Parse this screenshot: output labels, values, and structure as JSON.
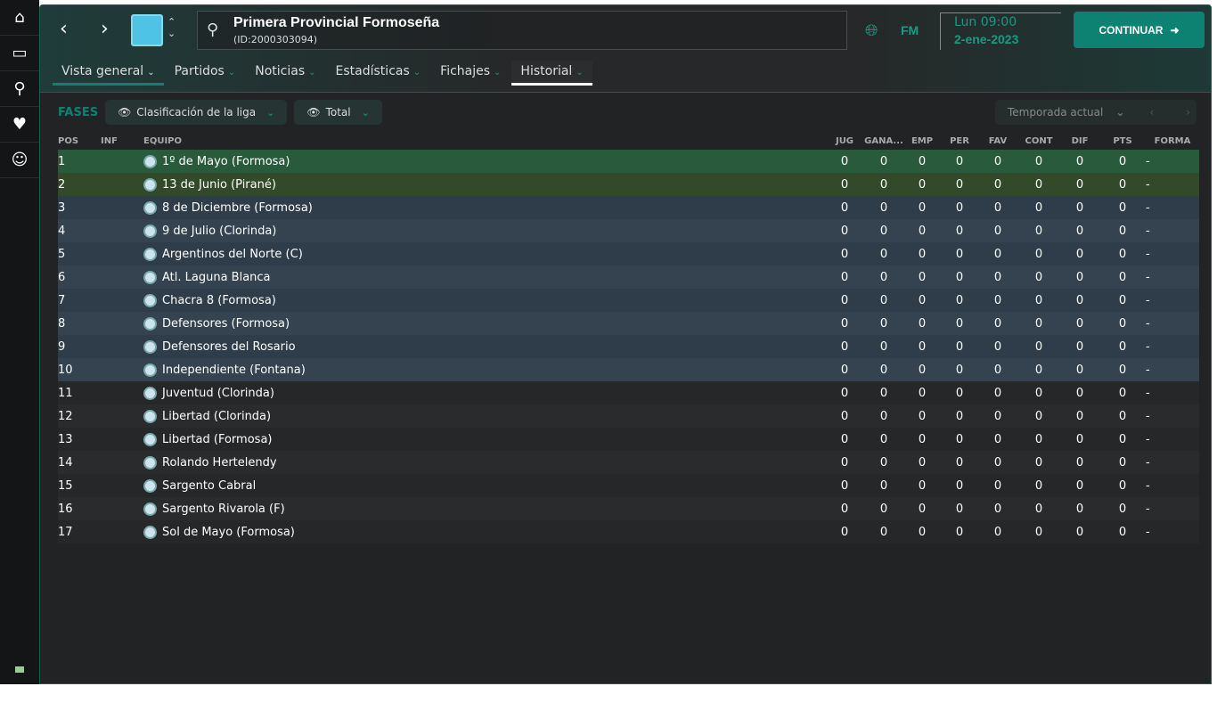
{
  "sidebar": {
    "items": [
      "home-icon",
      "inbox-icon",
      "search-icon",
      "scout-icon",
      "staff-icon"
    ]
  },
  "header": {
    "title": "Primera Provincial Formoseña",
    "id": "(ID:2000303094)",
    "fm": "FM",
    "time": "Lun 09:00",
    "date": "2-ene-2023",
    "continue": "CONTINUAR"
  },
  "tabs": [
    {
      "label": "Vista general"
    },
    {
      "label": "Partidos"
    },
    {
      "label": "Noticias"
    },
    {
      "label": "Estadísticas"
    },
    {
      "label": "Fichajes"
    },
    {
      "label": "Historial"
    }
  ],
  "filters": {
    "fases": "FASES",
    "view": "Clasificación de la liga",
    "scope": "Total",
    "season": "Temporada actual"
  },
  "columns": [
    "POS",
    "INF",
    "EQUIPO",
    "JUG",
    "GANA...",
    "EMP",
    "PER",
    "FAV",
    "CONT",
    "DIF",
    "PTS",
    "FORMA"
  ],
  "colors": {
    "accent": "#0e8272",
    "row_1st": "#2a5a3c",
    "row_2nd": "#334a2a",
    "rows_3rd_to_10th": "#2f3d4a"
  },
  "rows": [
    {
      "pos": "1",
      "team": "1º de Mayo (Formosa)",
      "jug": "0",
      "g": "0",
      "e": "0",
      "p": "0",
      "fav": "0",
      "cont": "0",
      "dif": "0",
      "pts": "0",
      "forma": "-"
    },
    {
      "pos": "2",
      "team": "13 de Junio (Pirané)",
      "jug": "0",
      "g": "0",
      "e": "0",
      "p": "0",
      "fav": "0",
      "cont": "0",
      "dif": "0",
      "pts": "0",
      "forma": "-"
    },
    {
      "pos": "3",
      "team": "8 de Diciembre (Formosa)",
      "jug": "0",
      "g": "0",
      "e": "0",
      "p": "0",
      "fav": "0",
      "cont": "0",
      "dif": "0",
      "pts": "0",
      "forma": "-"
    },
    {
      "pos": "4",
      "team": "9 de Julio (Clorinda)",
      "jug": "0",
      "g": "0",
      "e": "0",
      "p": "0",
      "fav": "0",
      "cont": "0",
      "dif": "0",
      "pts": "0",
      "forma": "-"
    },
    {
      "pos": "5",
      "team": "Argentinos del Norte (C)",
      "jug": "0",
      "g": "0",
      "e": "0",
      "p": "0",
      "fav": "0",
      "cont": "0",
      "dif": "0",
      "pts": "0",
      "forma": "-"
    },
    {
      "pos": "6",
      "team": "Atl. Laguna Blanca",
      "jug": "0",
      "g": "0",
      "e": "0",
      "p": "0",
      "fav": "0",
      "cont": "0",
      "dif": "0",
      "pts": "0",
      "forma": "-"
    },
    {
      "pos": "7",
      "team": "Chacra 8 (Formosa)",
      "jug": "0",
      "g": "0",
      "e": "0",
      "p": "0",
      "fav": "0",
      "cont": "0",
      "dif": "0",
      "pts": "0",
      "forma": "-"
    },
    {
      "pos": "8",
      "team": "Defensores (Formosa)",
      "jug": "0",
      "g": "0",
      "e": "0",
      "p": "0",
      "fav": "0",
      "cont": "0",
      "dif": "0",
      "pts": "0",
      "forma": "-"
    },
    {
      "pos": "9",
      "team": "Defensores del Rosario",
      "jug": "0",
      "g": "0",
      "e": "0",
      "p": "0",
      "fav": "0",
      "cont": "0",
      "dif": "0",
      "pts": "0",
      "forma": "-"
    },
    {
      "pos": "10",
      "team": "Independiente (Fontana)",
      "jug": "0",
      "g": "0",
      "e": "0",
      "p": "0",
      "fav": "0",
      "cont": "0",
      "dif": "0",
      "pts": "0",
      "forma": "-"
    },
    {
      "pos": "11",
      "team": "Juventud (Clorinda)",
      "jug": "0",
      "g": "0",
      "e": "0",
      "p": "0",
      "fav": "0",
      "cont": "0",
      "dif": "0",
      "pts": "0",
      "forma": "-"
    },
    {
      "pos": "12",
      "team": "Libertad (Clorinda)",
      "jug": "0",
      "g": "0",
      "e": "0",
      "p": "0",
      "fav": "0",
      "cont": "0",
      "dif": "0",
      "pts": "0",
      "forma": "-"
    },
    {
      "pos": "13",
      "team": "Libertad (Formosa)",
      "jug": "0",
      "g": "0",
      "e": "0",
      "p": "0",
      "fav": "0",
      "cont": "0",
      "dif": "0",
      "pts": "0",
      "forma": "-"
    },
    {
      "pos": "14",
      "team": "Rolando Hertelendy",
      "jug": "0",
      "g": "0",
      "e": "0",
      "p": "0",
      "fav": "0",
      "cont": "0",
      "dif": "0",
      "pts": "0",
      "forma": "-"
    },
    {
      "pos": "15",
      "team": "Sargento Cabral",
      "jug": "0",
      "g": "0",
      "e": "0",
      "p": "0",
      "fav": "0",
      "cont": "0",
      "dif": "0",
      "pts": "0",
      "forma": "-"
    },
    {
      "pos": "16",
      "team": "Sargento Rivarola (F)",
      "jug": "0",
      "g": "0",
      "e": "0",
      "p": "0",
      "fav": "0",
      "cont": "0",
      "dif": "0",
      "pts": "0",
      "forma": "-"
    },
    {
      "pos": "17",
      "team": "Sol de Mayo (Formosa)",
      "jug": "0",
      "g": "0",
      "e": "0",
      "p": "0",
      "fav": "0",
      "cont": "0",
      "dif": "0",
      "pts": "0",
      "forma": "-"
    }
  ]
}
